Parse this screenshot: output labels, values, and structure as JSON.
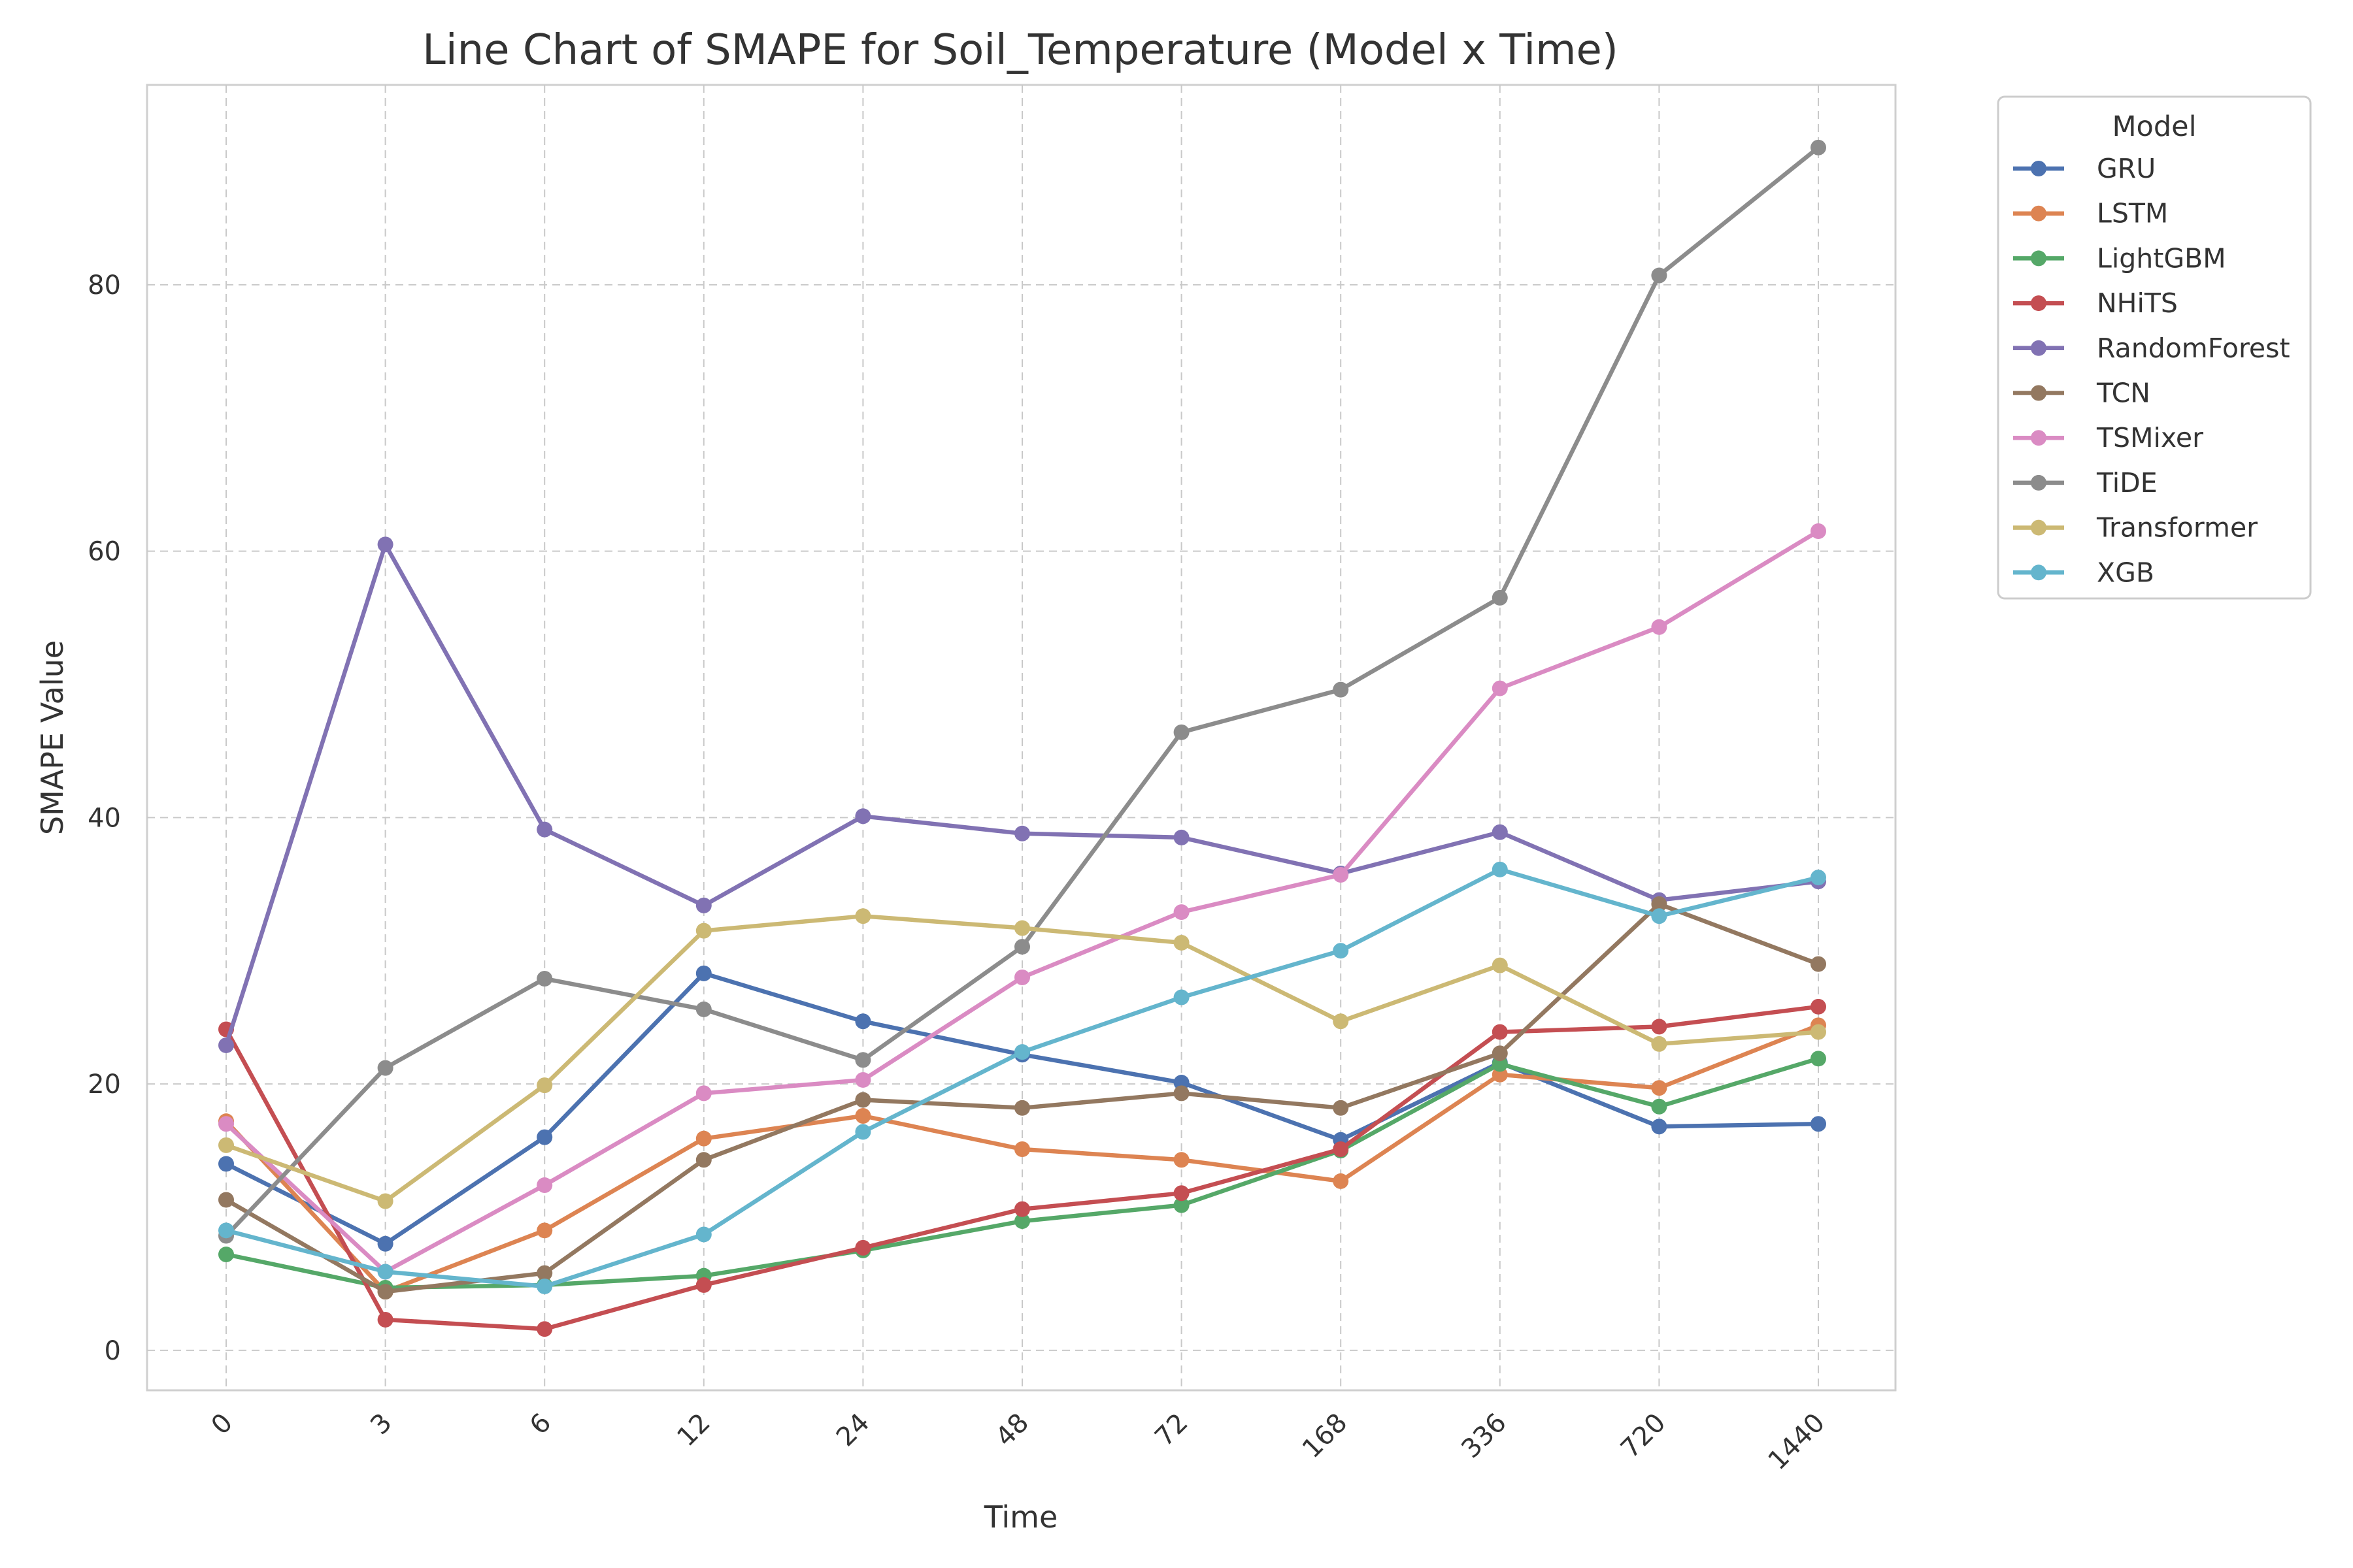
{
  "chart_data": {
    "type": "line",
    "title": "Line Chart of SMAPE for Soil_Temperature (Model x Time)",
    "xlabel": "Time",
    "ylabel": "SMAPE Value",
    "categories": [
      "0",
      "3",
      "6",
      "12",
      "24",
      "48",
      "72",
      "168",
      "336",
      "720",
      "1440"
    ],
    "yticks": [
      "0",
      "20",
      "40",
      "60",
      "80"
    ],
    "ylim": [
      -3,
      95
    ],
    "grid": true,
    "legend": {
      "title": "Model",
      "position": "outside-right"
    },
    "series": [
      {
        "name": "GRU",
        "color": "#4c72b0",
        "values": [
          14.0,
          8.0,
          16.0,
          28.3,
          24.7,
          22.2,
          20.1,
          15.8,
          21.6,
          16.8,
          17.0
        ]
      },
      {
        "name": "LSTM",
        "color": "#dd8452",
        "values": [
          17.2,
          4.4,
          9.0,
          15.9,
          17.6,
          15.1,
          14.3,
          12.7,
          20.7,
          19.7,
          24.4
        ]
      },
      {
        "name": "LightGBM",
        "color": "#55a868",
        "values": [
          7.2,
          4.7,
          4.9,
          5.6,
          7.5,
          9.7,
          10.9,
          15.0,
          21.5,
          18.3,
          21.9
        ]
      },
      {
        "name": "NHiTS",
        "color": "#c44e52",
        "values": [
          24.1,
          2.3,
          1.6,
          4.9,
          7.7,
          10.6,
          11.8,
          15.1,
          23.9,
          24.3,
          25.8
        ]
      },
      {
        "name": "RandomForest",
        "color": "#8172b3",
        "values": [
          22.9,
          60.5,
          39.1,
          33.4,
          40.1,
          38.8,
          38.5,
          35.8,
          38.9,
          33.8,
          35.2
        ]
      },
      {
        "name": "TCN",
        "color": "#937860",
        "values": [
          11.3,
          4.4,
          5.8,
          14.3,
          18.8,
          18.2,
          19.3,
          18.2,
          22.3,
          33.5,
          29.0
        ]
      },
      {
        "name": "TSMixer",
        "color": "#da8bc3",
        "values": [
          17.0,
          5.9,
          12.4,
          19.3,
          20.3,
          28.0,
          32.9,
          35.7,
          49.7,
          54.3,
          61.5
        ]
      },
      {
        "name": "TiDE",
        "color": "#8c8c8c",
        "values": [
          8.6,
          21.2,
          27.9,
          25.6,
          21.8,
          30.3,
          46.4,
          49.6,
          56.5,
          80.7,
          90.3
        ]
      },
      {
        "name": "Transformer",
        "color": "#ccb974",
        "values": [
          15.4,
          11.2,
          19.9,
          31.5,
          32.6,
          31.7,
          30.6,
          24.7,
          28.9,
          23.0,
          23.9
        ]
      },
      {
        "name": "XGB",
        "color": "#64b5cd",
        "values": [
          9.0,
          5.9,
          4.8,
          8.7,
          16.4,
          22.4,
          26.5,
          30.0,
          36.1,
          32.6,
          35.5
        ]
      }
    ]
  }
}
